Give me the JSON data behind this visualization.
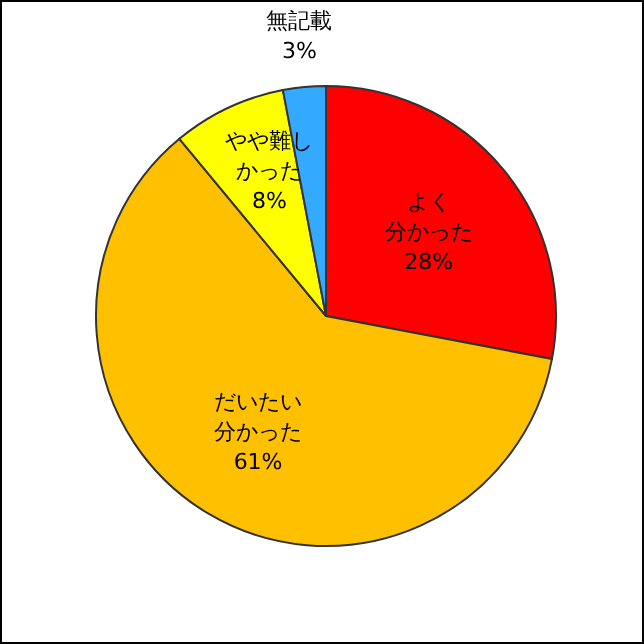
{
  "chart_data": {
    "type": "pie",
    "categories": [
      "よく分かった",
      "だいたい分かった",
      "やや難しかった",
      "無記載"
    ],
    "values": [
      28,
      61,
      8,
      3
    ],
    "value_labels": [
      "28%",
      "61%",
      "8%",
      "3%"
    ],
    "colors": [
      "#ff0000",
      "#ffc000",
      "#ffff00",
      "#33aaff"
    ],
    "legend": false
  }
}
